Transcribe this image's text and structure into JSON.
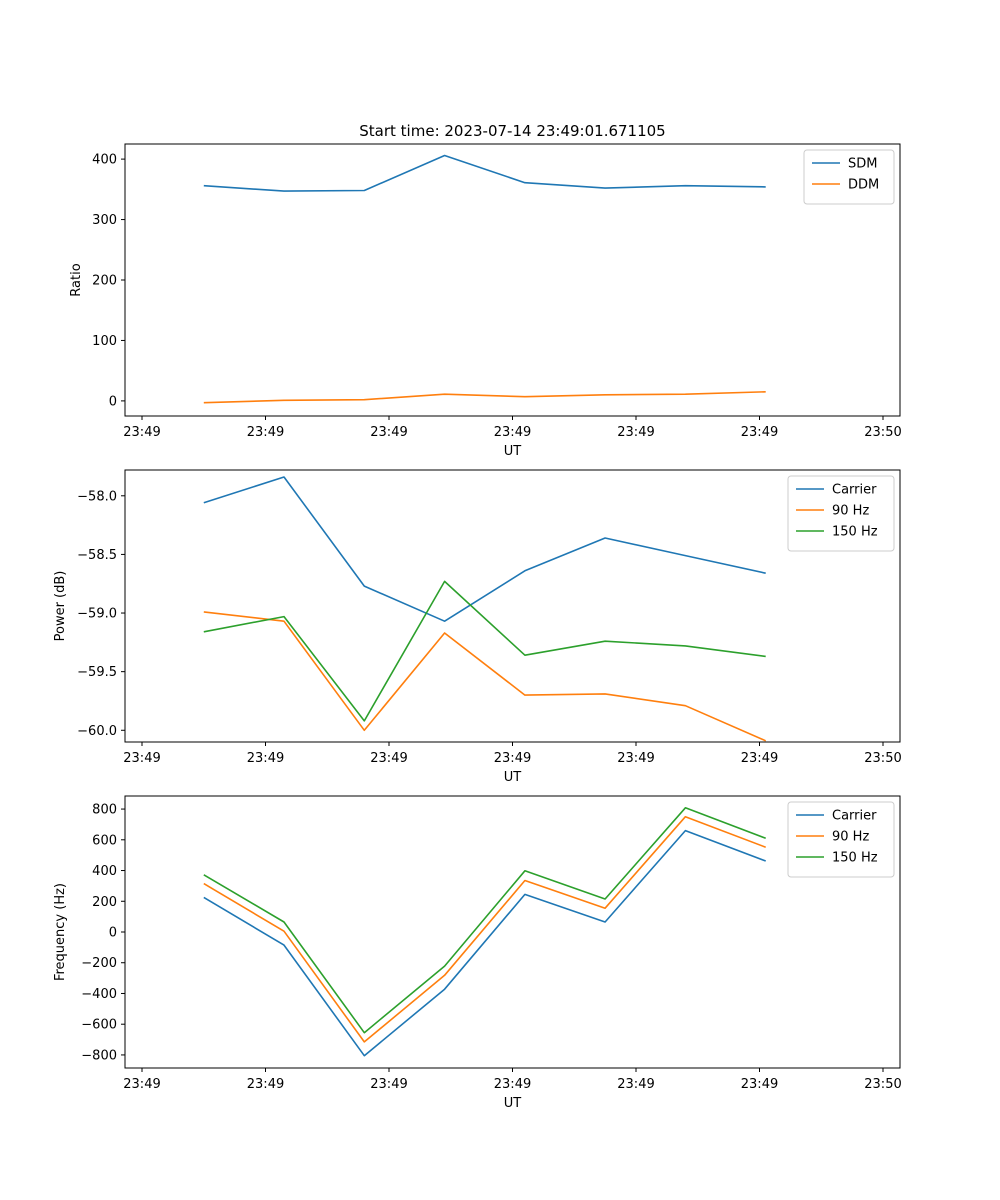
{
  "figure": {
    "title": "Start time: 2023-07-14 23:49:01.671105"
  },
  "colors": {
    "blue": "#1f77b4",
    "orange": "#ff7f0e",
    "green": "#2ca02c"
  },
  "chart_data": [
    {
      "type": "line",
      "title": "Start time: 2023-07-14 23:49:01.671105",
      "xlabel": "UT",
      "ylabel": "Ratio",
      "xlim": [
        0,
        6
      ],
      "ylim": [
        -25,
        425
      ],
      "x": [
        0.5,
        1.15,
        1.8,
        2.45,
        3.1,
        3.75,
        4.4,
        5.05
      ],
      "xticks": [
        {
          "value": 0.0,
          "label": "23:49"
        },
        {
          "value": 1.0,
          "label": "23:49"
        },
        {
          "value": 2.0,
          "label": "23:49"
        },
        {
          "value": 3.0,
          "label": "23:49"
        },
        {
          "value": 4.0,
          "label": "23:49"
        },
        {
          "value": 5.0,
          "label": "23:49"
        },
        {
          "value": 6.0,
          "label": "23:50"
        }
      ],
      "yticks": [
        {
          "value": 0,
          "label": "0"
        },
        {
          "value": 100,
          "label": "100"
        },
        {
          "value": 200,
          "label": "200"
        },
        {
          "value": 300,
          "label": "300"
        },
        {
          "value": 400,
          "label": "400"
        }
      ],
      "legend": "top-right",
      "series": [
        {
          "name": "SDM",
          "color": "blue",
          "values": [
            356,
            347,
            348,
            406,
            361,
            352,
            356,
            354
          ]
        },
        {
          "name": "DDM",
          "color": "orange",
          "values": [
            -3,
            1,
            2,
            11,
            7,
            10,
            11,
            15
          ]
        }
      ]
    },
    {
      "type": "line",
      "title": "",
      "xlabel": "UT",
      "ylabel": "Power (dB)",
      "xlim": [
        0,
        6
      ],
      "ylim": [
        -60.1,
        -57.78
      ],
      "x": [
        0.5,
        1.15,
        1.8,
        2.45,
        3.1,
        3.75,
        4.4,
        5.05
      ],
      "xticks": [
        {
          "value": 0.0,
          "label": "23:49"
        },
        {
          "value": 1.0,
          "label": "23:49"
        },
        {
          "value": 2.0,
          "label": "23:49"
        },
        {
          "value": 3.0,
          "label": "23:49"
        },
        {
          "value": 4.0,
          "label": "23:49"
        },
        {
          "value": 5.0,
          "label": "23:49"
        },
        {
          "value": 6.0,
          "label": "23:50"
        }
      ],
      "yticks": [
        {
          "value": -58.0,
          "label": "−58.0"
        },
        {
          "value": -58.5,
          "label": "−58.5"
        },
        {
          "value": -59.0,
          "label": "−59.0"
        },
        {
          "value": -59.5,
          "label": "−59.5"
        },
        {
          "value": -60.0,
          "label": "−60.0"
        }
      ],
      "legend": "top-right",
      "series": [
        {
          "name": "Carrier",
          "color": "blue",
          "values": [
            -58.06,
            -57.84,
            -58.77,
            -59.07,
            -58.64,
            -58.36,
            -58.51,
            -58.66
          ]
        },
        {
          "name": "90 Hz",
          "color": "orange",
          "values": [
            -58.99,
            -59.07,
            -60.0,
            -59.17,
            -59.7,
            -59.69,
            -59.79,
            -60.09
          ]
        },
        {
          "name": "150 Hz",
          "color": "green",
          "values": [
            -59.16,
            -59.03,
            -59.92,
            -58.73,
            -59.36,
            -59.24,
            -59.28,
            -59.37
          ]
        }
      ]
    },
    {
      "type": "line",
      "title": "",
      "xlabel": "UT",
      "ylabel": "Frequency (Hz)",
      "xlim": [
        0,
        6
      ],
      "ylim": [
        -885,
        885
      ],
      "x": [
        0.5,
        1.15,
        1.8,
        2.45,
        3.1,
        3.75,
        4.4,
        5.05
      ],
      "xticks": [
        {
          "value": 0.0,
          "label": "23:49"
        },
        {
          "value": 1.0,
          "label": "23:49"
        },
        {
          "value": 2.0,
          "label": "23:49"
        },
        {
          "value": 3.0,
          "label": "23:49"
        },
        {
          "value": 4.0,
          "label": "23:49"
        },
        {
          "value": 5.0,
          "label": "23:49"
        },
        {
          "value": 6.0,
          "label": "23:50"
        }
      ],
      "yticks": [
        {
          "value": -800,
          "label": "−800"
        },
        {
          "value": -600,
          "label": "−600"
        },
        {
          "value": -400,
          "label": "−400"
        },
        {
          "value": -200,
          "label": "−200"
        },
        {
          "value": 0,
          "label": "0"
        },
        {
          "value": 200,
          "label": "200"
        },
        {
          "value": 400,
          "label": "400"
        },
        {
          "value": 600,
          "label": "600"
        },
        {
          "value": 800,
          "label": "800"
        }
      ],
      "legend": "top-right",
      "series": [
        {
          "name": "Carrier",
          "color": "blue",
          "values": [
            225,
            -85,
            -805,
            -372,
            245,
            65,
            660,
            462
          ]
        },
        {
          "name": "90 Hz",
          "color": "orange",
          "values": [
            315,
            5,
            -715,
            -282,
            335,
            155,
            750,
            552
          ]
        },
        {
          "name": "150 Hz",
          "color": "green",
          "values": [
            372,
            65,
            -655,
            -222,
            398,
            215,
            808,
            610
          ]
        }
      ]
    }
  ]
}
